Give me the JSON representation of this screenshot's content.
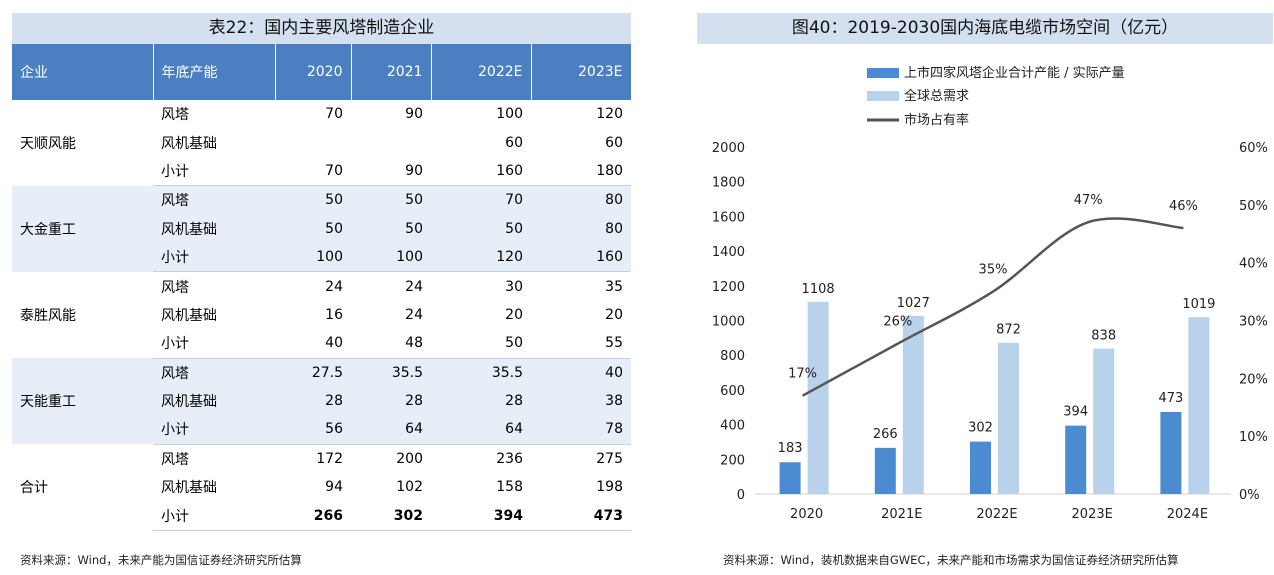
{
  "table": {
    "title": "表22：国内主要风塔制造企业",
    "headers": [
      "企业",
      "年底产能",
      "2020",
      "2021",
      "2022E",
      "2023E"
    ],
    "groups": [
      {
        "company": "天顺风能",
        "rows": [
          {
            "item": "风塔",
            "values": [
              "70",
              "90",
              "100",
              "120"
            ]
          },
          {
            "item": "风机基础",
            "values": [
              "",
              "",
              "60",
              "60"
            ]
          },
          {
            "item": "小计",
            "values": [
              "70",
              "90",
              "160",
              "180"
            ]
          }
        ]
      },
      {
        "company": "大金重工",
        "rows": [
          {
            "item": "风塔",
            "values": [
              "50",
              "50",
              "70",
              "80"
            ]
          },
          {
            "item": "风机基础",
            "values": [
              "50",
              "50",
              "50",
              "80"
            ]
          },
          {
            "item": "小计",
            "values": [
              "100",
              "100",
              "120",
              "160"
            ]
          }
        ]
      },
      {
        "company": "泰胜风能",
        "rows": [
          {
            "item": "风塔",
            "values": [
              "24",
              "24",
              "30",
              "35"
            ]
          },
          {
            "item": "风机基础",
            "values": [
              "16",
              "24",
              "20",
              "20"
            ]
          },
          {
            "item": "小计",
            "values": [
              "40",
              "48",
              "50",
              "55"
            ]
          }
        ]
      },
      {
        "company": "天能重工",
        "rows": [
          {
            "item": "风塔",
            "values": [
              "27.5",
              "35.5",
              "35.5",
              "40"
            ]
          },
          {
            "item": "风机基础",
            "values": [
              "28",
              "28",
              "28",
              "38"
            ]
          },
          {
            "item": "小计",
            "values": [
              "56",
              "64",
              "64",
              "78"
            ]
          }
        ]
      },
      {
        "company": "合计",
        "rows": [
          {
            "item": "风塔",
            "values": [
              "172",
              "200",
              "236",
              "275"
            ]
          },
          {
            "item": "风机基础",
            "values": [
              "94",
              "102",
              "158",
              "198"
            ]
          },
          {
            "item": "小计",
            "values": [
              "266",
              "302",
              "394",
              "473"
            ]
          }
        ]
      }
    ],
    "source": "资料来源：Wind，未来产能为国信证券经济研究所估算"
  },
  "chart_panel": {
    "title": "图40：2019-2030国内海底电缆市场空间（亿元）",
    "source": "资料来源：Wind，装机数据来自GWEC，未来产能和市场需求为国信证券经济研究所估算"
  },
  "chart_data": {
    "type": "bar",
    "categories": [
      "2020",
      "2021E",
      "2022E",
      "2023E",
      "2024E"
    ],
    "series": [
      {
        "name": "上市四家风塔企业合计产能 / 实际产量",
        "type": "bar",
        "axis": "left",
        "values": [
          183,
          266,
          302,
          394,
          473
        ],
        "color": "#4a8bd2"
      },
      {
        "name": "全球总需求",
        "type": "bar",
        "axis": "left",
        "values": [
          1108,
          1027,
          872,
          838,
          1019
        ],
        "color": "#b8d2ec"
      },
      {
        "name": "市场占有率",
        "type": "line",
        "axis": "right",
        "values": [
          17,
          26,
          35,
          47,
          46
        ],
        "labels": [
          "17%",
          "26%",
          "35%",
          "47%",
          "46%"
        ],
        "color": "#555555"
      }
    ],
    "ylim": [
      0,
      2000
    ],
    "yticks": [
      "0",
      "200",
      "400",
      "600",
      "800",
      "1000",
      "1200",
      "1400",
      "1600",
      "1800",
      "2000"
    ],
    "y2lim": [
      0,
      60
    ],
    "y2ticks": [
      "0%",
      "10%",
      "20%",
      "30%",
      "40%",
      "50%",
      "60%"
    ],
    "legend": "top-left",
    "grid": false
  }
}
